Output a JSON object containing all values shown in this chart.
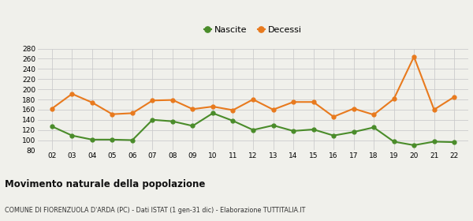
{
  "years": [
    2,
    3,
    4,
    5,
    6,
    7,
    8,
    9,
    10,
    11,
    12,
    13,
    14,
    15,
    16,
    17,
    18,
    19,
    20,
    21,
    22
  ],
  "nascite": [
    127,
    109,
    101,
    101,
    100,
    140,
    137,
    128,
    153,
    138,
    120,
    129,
    118,
    121,
    109,
    116,
    125,
    97,
    90,
    97,
    96
  ],
  "decessi": [
    162,
    191,
    174,
    151,
    153,
    178,
    179,
    161,
    166,
    159,
    180,
    160,
    175,
    175,
    146,
    162,
    150,
    181,
    264,
    160,
    185
  ],
  "nascite_color": "#4a8c2a",
  "decessi_color": "#e87a1e",
  "background_color": "#f0f0eb",
  "grid_color": "#cccccc",
  "ylim": [
    80,
    280
  ],
  "yticks": [
    80,
    100,
    120,
    140,
    160,
    180,
    200,
    220,
    240,
    260,
    280
  ],
  "title": "Movimento naturale della popolazione",
  "subtitle": "COMUNE DI FIORENZUOLA D'ARDA (PC) - Dati ISTAT (1 gen-31 dic) - Elaborazione TUTTITALIA.IT",
  "legend_nascite": "Nascite",
  "legend_decessi": "Decessi",
  "marker_size": 3.5,
  "line_width": 1.5
}
